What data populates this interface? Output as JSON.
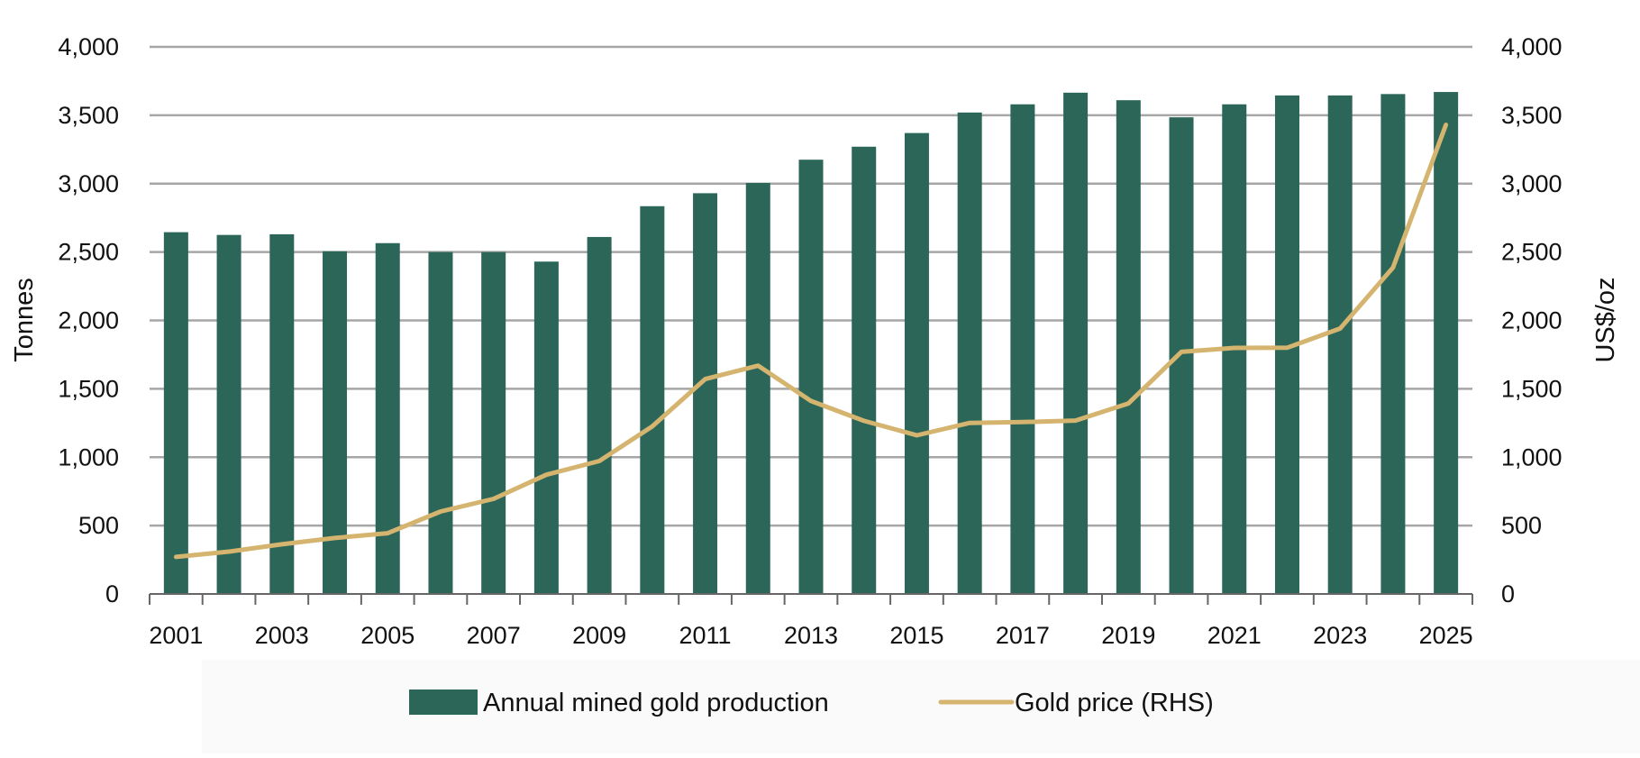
{
  "chart_data": {
    "type": "bar",
    "title": "",
    "categories": [
      "2001",
      "2002",
      "2003",
      "2004",
      "2005",
      "2006",
      "2007",
      "2008",
      "2009",
      "2010",
      "2011",
      "2012",
      "2013",
      "2014",
      "2015",
      "2016",
      "2017",
      "2018",
      "2019",
      "2020",
      "2021",
      "2022",
      "2023",
      "2024",
      "2025"
    ],
    "x_tick_labels": [
      "2001",
      "2003",
      "2005",
      "2007",
      "2009",
      "2011",
      "2013",
      "2015",
      "2017",
      "2019",
      "2021",
      "2023",
      "2025"
    ],
    "ylabel": "Tonnes",
    "y2label": "US$/oz",
    "ylim": [
      0,
      4000
    ],
    "y2lim": [
      0,
      4000
    ],
    "y_ticks": [
      "0",
      "500",
      "1,000",
      "1,500",
      "2,000",
      "2,500",
      "3,000",
      "3,500",
      "4,000"
    ],
    "y2_ticks": [
      "0",
      "500",
      "1,000",
      "1,500",
      "2,000",
      "2,500",
      "3,000",
      "3,500",
      "4,000"
    ],
    "grid": true,
    "legend_position": "bottom",
    "series": [
      {
        "name": "Annual mined gold production",
        "type": "bar",
        "axis": "left",
        "color": "#2b6659",
        "values": [
          2645,
          2625,
          2630,
          2505,
          2565,
          2500,
          2500,
          2430,
          2610,
          2835,
          2930,
          3005,
          3175,
          3270,
          3370,
          3520,
          3580,
          3665,
          3610,
          3485,
          3580,
          3645,
          3645,
          3655,
          3670
        ]
      },
      {
        "name": "Gold price (RHS)",
        "type": "line",
        "axis": "right",
        "color": "#d4b46e",
        "values": [
          271,
          310,
          363,
          409,
          444,
          603,
          695,
          872,
          972,
          1225,
          1571,
          1669,
          1411,
          1266,
          1160,
          1251,
          1257,
          1268,
          1393,
          1770,
          1799,
          1800,
          1941,
          2386,
          3430
        ]
      }
    ]
  }
}
